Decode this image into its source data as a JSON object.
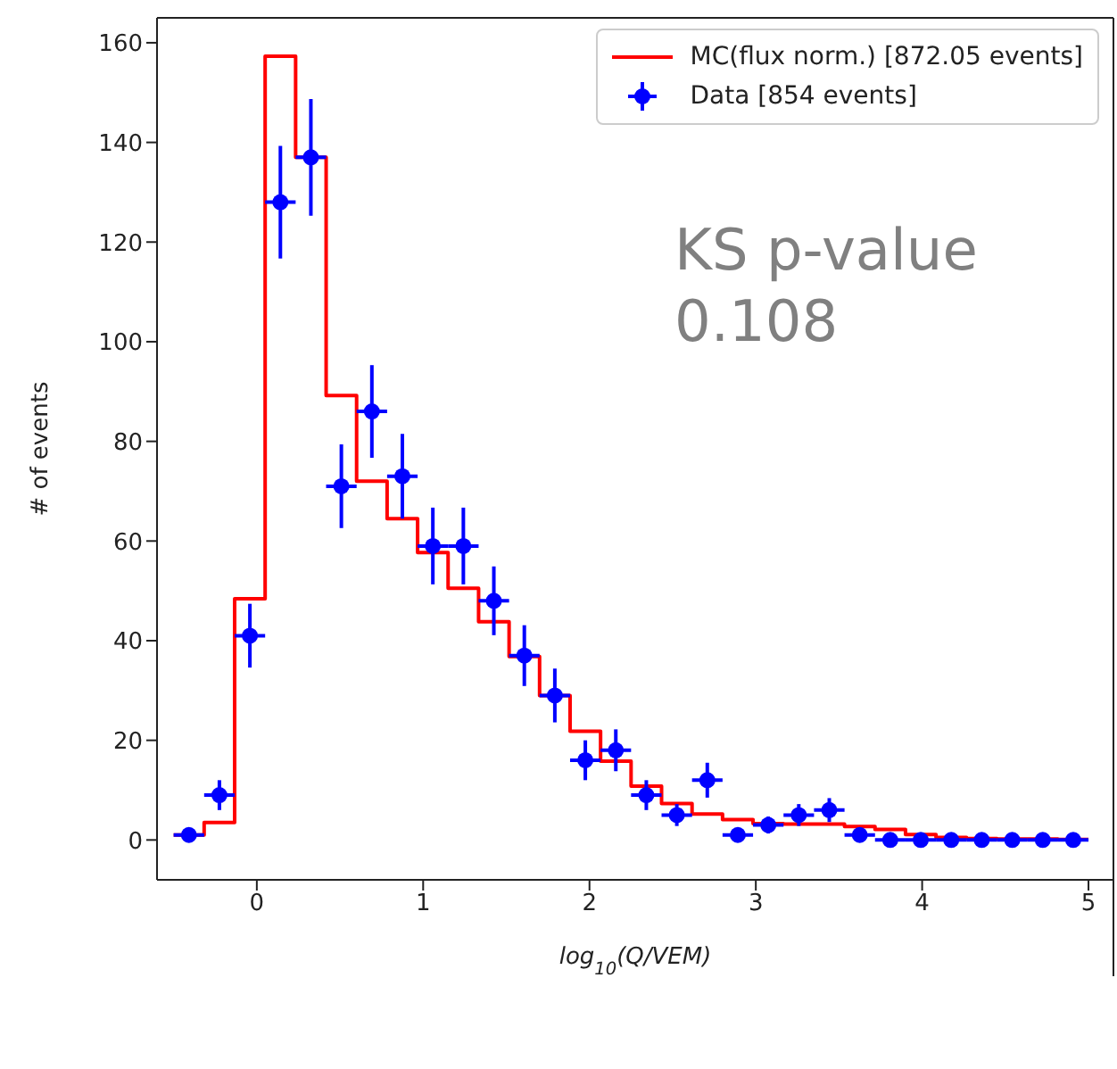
{
  "chart_data": {
    "type": "histogram",
    "xlabel": "log$_{10}$(Q/VEM)",
    "ylabel": "# of events",
    "annotations": [
      "KS p-value\n0.108"
    ],
    "bins": [
      -0.5,
      -0.3167,
      -0.1333,
      0.05,
      0.2333,
      0.4167,
      0.6,
      0.7833,
      0.9667,
      1.15,
      1.3333,
      1.5167,
      1.7,
      1.8833,
      2.0667,
      2.25,
      2.4333,
      2.6167,
      2.8,
      2.9833,
      3.1667,
      3.35,
      3.5333,
      3.7167,
      3.9,
      4.0833,
      4.2667,
      4.45,
      4.6333,
      4.8167,
      5.0
    ],
    "series": [
      {
        "name": "MC(flux norm.) [872.05 events]",
        "color": "#ff0000",
        "values": [
          1,
          3.5,
          48.4,
          157.3,
          137,
          89.2,
          72,
          64.5,
          57.7,
          50.5,
          43.8,
          36.8,
          29,
          21.8,
          15.8,
          10.8,
          7.3,
          5.2,
          4.1,
          3.3,
          3.2,
          3.2,
          2.7,
          2.1,
          1.1,
          0.5,
          0.3,
          0.2,
          0.2,
          0.1
        ]
      },
      {
        "type": "scatter",
        "name": "Data [854 events]",
        "color": "#0000ff",
        "x": [
          -0.4083,
          -0.225,
          -0.0417,
          0.1417,
          0.325,
          0.5083,
          0.6917,
          0.875,
          1.0583,
          1.2417,
          1.425,
          1.6083,
          1.7917,
          1.975,
          2.1583,
          2.3417,
          2.525,
          2.7083,
          2.8917,
          3.075,
          3.2583,
          3.4417,
          3.625,
          3.8083,
          3.9917,
          4.175,
          4.3583,
          4.5417,
          4.725,
          4.9083
        ],
        "values": [
          1,
          9,
          41,
          128,
          137,
          71,
          86,
          73,
          59,
          59,
          48,
          37,
          29,
          16,
          18,
          9,
          5,
          12,
          1,
          3,
          5,
          6,
          1,
          0,
          0,
          0,
          0,
          0,
          0,
          0
        ],
        "errors": [
          1,
          3,
          6.4,
          11.3,
          11.7,
          8.4,
          9.3,
          8.5,
          7.7,
          7.7,
          6.9,
          6.1,
          5.4,
          4,
          4.2,
          3,
          2.2,
          3.5,
          1,
          1.7,
          2.2,
          2.4,
          1,
          null,
          null,
          null,
          null,
          null,
          null,
          null
        ],
        "xerrors": [
          0.0917,
          0.0917,
          0.0917,
          0.0917,
          0.0917,
          0.0917,
          0.0917,
          0.0917,
          0.0917,
          0.0917,
          0.0917,
          0.0917,
          0.0917,
          0.0917,
          0.0917,
          0.0917,
          0.0917,
          0.0917,
          0.0917,
          0.0917,
          0.0917,
          0.0917,
          0.0917,
          0.0917,
          0.0917,
          0.0917,
          0.0917,
          0.0917,
          0.0917,
          0.0917
        ]
      }
    ],
    "xlim": [
      -0.6,
      5.15
    ],
    "ylim": [
      -8,
      165
    ],
    "xticks": [
      0,
      1,
      2,
      3,
      4,
      5
    ],
    "yticks": [
      0,
      20,
      40,
      60,
      80,
      100,
      120,
      140,
      160
    ],
    "grid": false,
    "legend": "top right",
    "marker": "circle"
  }
}
